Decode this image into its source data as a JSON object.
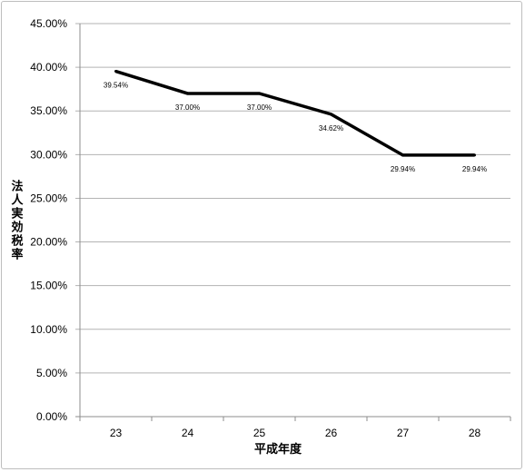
{
  "chart_data": {
    "type": "line",
    "title": "",
    "xlabel": "平成年度",
    "ylabel": "法人実効税率",
    "categories": [
      "23",
      "24",
      "25",
      "26",
      "27",
      "28"
    ],
    "series": [
      {
        "values": [
          39.54,
          37.0,
          37.0,
          34.62,
          29.94,
          29.94
        ]
      }
    ],
    "data_labels": [
      "39.54%",
      "37.00%",
      "37.00%",
      "34.62%",
      "29.94%",
      "29.94%"
    ],
    "ylim": [
      0,
      45
    ],
    "yticks": [
      "0.00%",
      "5.00%",
      "10.00%",
      "15.00%",
      "20.00%",
      "25.00%",
      "30.00%",
      "35.00%",
      "40.00%",
      "45.00%"
    ],
    "grid": true,
    "legend": "none",
    "line_color": "#000000",
    "grid_color": "#b3b3b3"
  }
}
